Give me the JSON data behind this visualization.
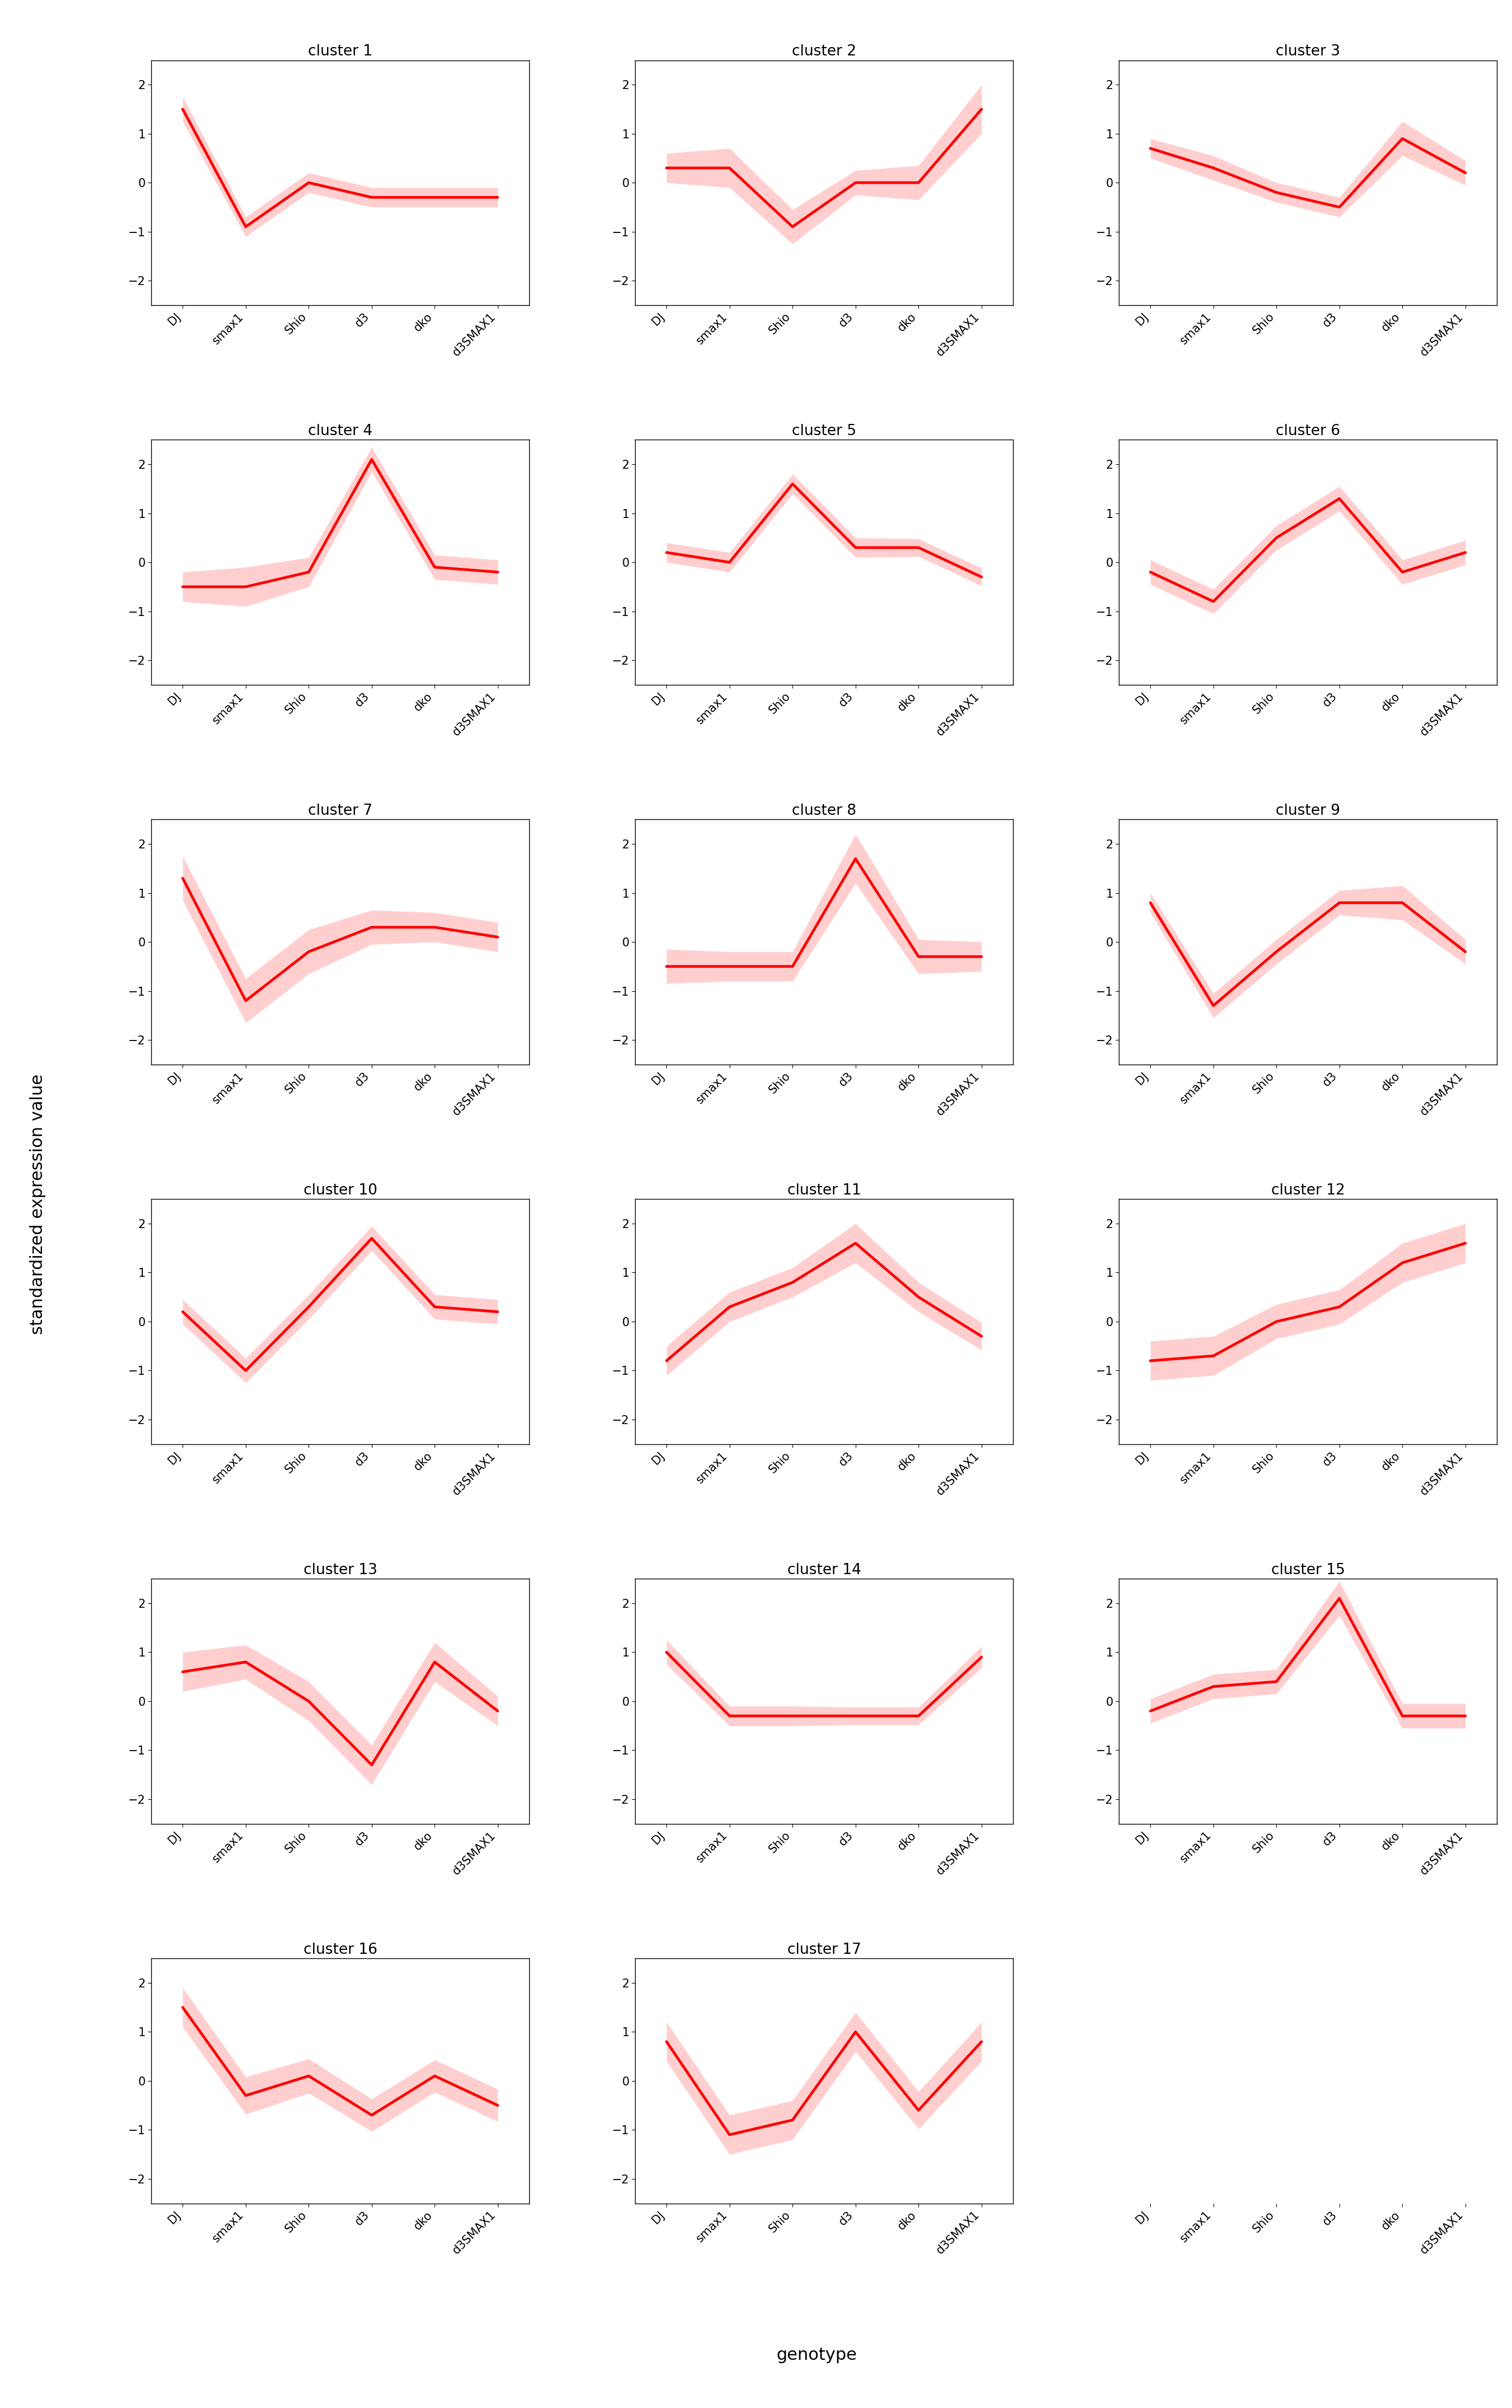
{
  "x_labels": [
    "DJ",
    "smax1",
    "Shio",
    "d3",
    "dko",
    "d3SMAX1"
  ],
  "ylabel": "standardized expression value",
  "xlabel": "genotype",
  "line_color": "#ff0000",
  "fill_color": "#ffb0b0",
  "fill_alpha": 0.6,
  "line_width": 3.5,
  "ylim": [
    -2.5,
    2.5
  ],
  "yticks": [
    -2,
    -1,
    0,
    1,
    2
  ],
  "title_fontsize": 19,
  "axis_label_fontsize": 22,
  "tick_fontsize": 15,
  "n_clusters": 17,
  "clusters": {
    "1": {
      "mean": [
        1.5,
        -0.9,
        0.0,
        -0.3,
        -0.3,
        -0.3
      ],
      "std": [
        0.25,
        0.2,
        0.2,
        0.2,
        0.2,
        0.2
      ]
    },
    "2": {
      "mean": [
        0.3,
        0.3,
        -0.9,
        0.0,
        0.0,
        1.5
      ],
      "std": [
        0.3,
        0.4,
        0.35,
        0.25,
        0.35,
        0.5
      ]
    },
    "3": {
      "mean": [
        0.7,
        0.3,
        -0.2,
        -0.5,
        0.9,
        0.2
      ],
      "std": [
        0.2,
        0.25,
        0.2,
        0.2,
        0.35,
        0.25
      ]
    },
    "4": {
      "mean": [
        -0.5,
        -0.5,
        -0.2,
        2.1,
        -0.1,
        -0.2
      ],
      "std": [
        0.3,
        0.4,
        0.3,
        0.25,
        0.25,
        0.25
      ]
    },
    "5": {
      "mean": [
        0.2,
        0.0,
        1.6,
        0.3,
        0.3,
        -0.3
      ],
      "std": [
        0.2,
        0.2,
        0.2,
        0.2,
        0.18,
        0.18
      ]
    },
    "6": {
      "mean": [
        -0.2,
        -0.8,
        0.5,
        1.3,
        -0.2,
        0.2
      ],
      "std": [
        0.25,
        0.25,
        0.25,
        0.25,
        0.25,
        0.25
      ]
    },
    "7": {
      "mean": [
        1.3,
        -1.2,
        -0.2,
        0.3,
        0.3,
        0.1
      ],
      "std": [
        0.45,
        0.45,
        0.45,
        0.35,
        0.3,
        0.3
      ]
    },
    "8": {
      "mean": [
        -0.5,
        -0.5,
        -0.5,
        1.7,
        -0.3,
        -0.3
      ],
      "std": [
        0.35,
        0.3,
        0.3,
        0.5,
        0.35,
        0.3
      ]
    },
    "9": {
      "mean": [
        0.8,
        -1.3,
        -0.2,
        0.8,
        0.8,
        -0.2
      ],
      "std": [
        0.2,
        0.25,
        0.25,
        0.25,
        0.35,
        0.25
      ]
    },
    "10": {
      "mean": [
        0.2,
        -1.0,
        0.3,
        1.7,
        0.3,
        0.2
      ],
      "std": [
        0.25,
        0.25,
        0.25,
        0.25,
        0.25,
        0.25
      ]
    },
    "11": {
      "mean": [
        -0.8,
        0.3,
        0.8,
        1.6,
        0.5,
        -0.3
      ],
      "std": [
        0.3,
        0.3,
        0.3,
        0.4,
        0.3,
        0.28
      ]
    },
    "12": {
      "mean": [
        -0.8,
        -0.7,
        0.0,
        0.3,
        1.2,
        1.6
      ],
      "std": [
        0.4,
        0.4,
        0.35,
        0.35,
        0.4,
        0.4
      ]
    },
    "13": {
      "mean": [
        0.6,
        0.8,
        0.0,
        -1.3,
        0.8,
        -0.2
      ],
      "std": [
        0.4,
        0.35,
        0.4,
        0.4,
        0.4,
        0.3
      ]
    },
    "14": {
      "mean": [
        1.0,
        -0.3,
        -0.3,
        -0.3,
        -0.3,
        0.9
      ],
      "std": [
        0.25,
        0.2,
        0.2,
        0.18,
        0.18,
        0.22
      ]
    },
    "15": {
      "mean": [
        -0.2,
        0.3,
        0.4,
        2.1,
        -0.3,
        -0.3
      ],
      "std": [
        0.25,
        0.25,
        0.25,
        0.35,
        0.25,
        0.25
      ]
    },
    "16": {
      "mean": [
        1.5,
        -0.3,
        0.1,
        -0.7,
        0.1,
        -0.5
      ],
      "std": [
        0.4,
        0.38,
        0.35,
        0.33,
        0.33,
        0.33
      ]
    },
    "17": {
      "mean": [
        0.8,
        -1.1,
        -0.8,
        1.0,
        -0.6,
        0.8
      ],
      "std": [
        0.4,
        0.4,
        0.4,
        0.4,
        0.38,
        0.4
      ]
    }
  }
}
